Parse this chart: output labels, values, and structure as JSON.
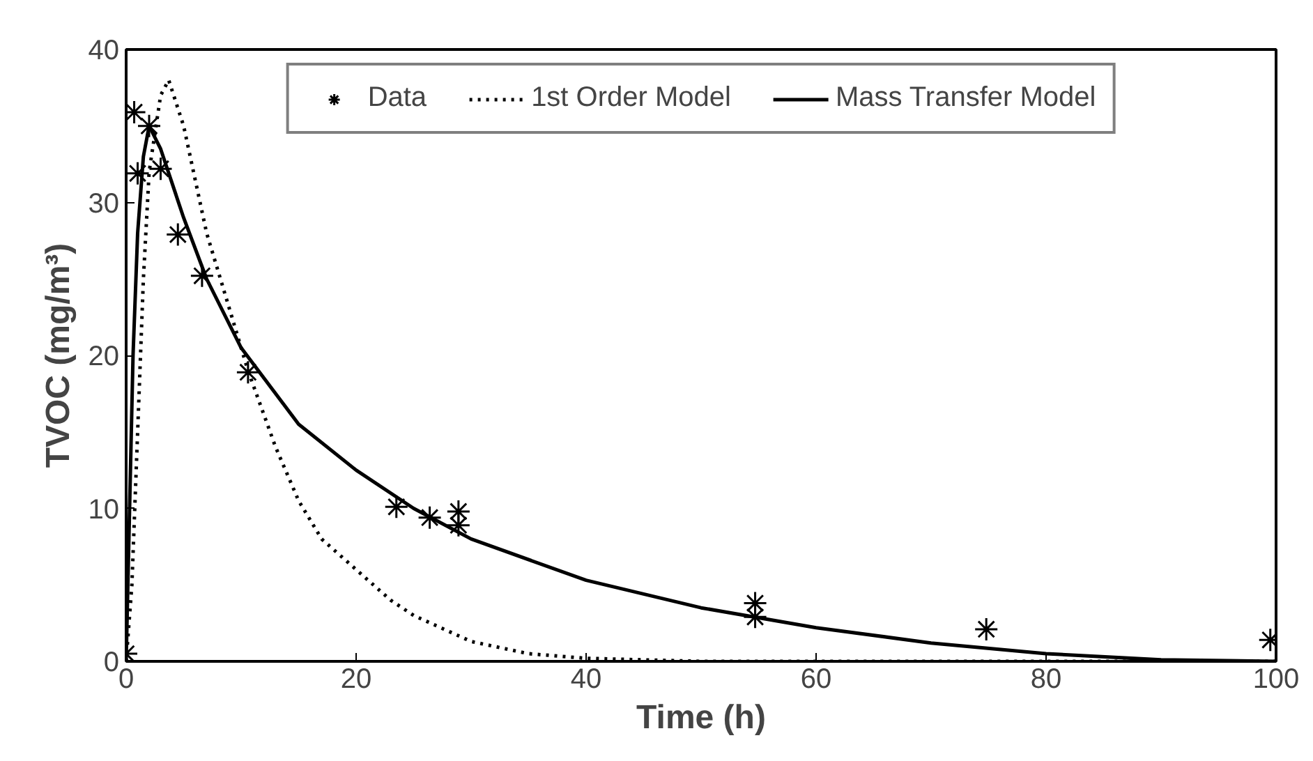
{
  "chart_data": {
    "type": "scatter",
    "xlabel": "Time (h)",
    "ylabel": "TVOC (mg/m³)",
    "xlim": [
      0,
      100
    ],
    "ylim": [
      0,
      40
    ],
    "xticks": [
      0,
      20,
      40,
      60,
      80,
      100
    ],
    "yticks": [
      0,
      10,
      20,
      30,
      40
    ],
    "grid": false,
    "legend": "top",
    "series": [
      {
        "name": "Data",
        "marker": "cross",
        "color": "#000000",
        "x": [
          0,
          0.7,
          2,
          1,
          3,
          4.5,
          6.6,
          10.6,
          23.5,
          26.4,
          28.9,
          28.9,
          54.7,
          54.7,
          74.8,
          99.5
        ],
        "values": [
          0.5,
          35.9,
          35,
          31.9,
          32.2,
          27.9,
          25.2,
          18.9,
          10.1,
          9.4,
          9.8,
          8.9,
          3.8,
          2.9,
          2.1,
          1.4
        ]
      },
      {
        "name": "1st Order Model",
        "type": "line",
        "line_style": "dotted",
        "color": "#000000",
        "x": [
          0,
          0.5,
          1,
          1.5,
          2,
          3,
          3.7,
          5,
          7,
          9,
          10.6,
          13,
          15,
          17,
          20,
          23,
          25,
          30,
          35,
          40,
          50,
          60,
          80,
          100
        ],
        "values": [
          0,
          5,
          15,
          25,
          32,
          37,
          38,
          35,
          28,
          23,
          19,
          14,
          10.5,
          8,
          6,
          4,
          3,
          1.3,
          0.5,
          0.2,
          0,
          0,
          0,
          0
        ]
      },
      {
        "name": "Mass Transfer Model",
        "type": "line",
        "line_style": "solid",
        "color": "#000000",
        "x": [
          0,
          0.3,
          0.6,
          1,
          1.5,
          2,
          3,
          5,
          7,
          10,
          15,
          20,
          25,
          30,
          40,
          50,
          60,
          70,
          80,
          90,
          100
        ],
        "values": [
          0,
          10,
          20,
          28,
          33,
          35,
          33.5,
          29,
          25,
          20.5,
          15.5,
          12.5,
          10,
          8,
          5.3,
          3.5,
          2.2,
          1.2,
          0.5,
          0.1,
          0
        ]
      }
    ]
  }
}
